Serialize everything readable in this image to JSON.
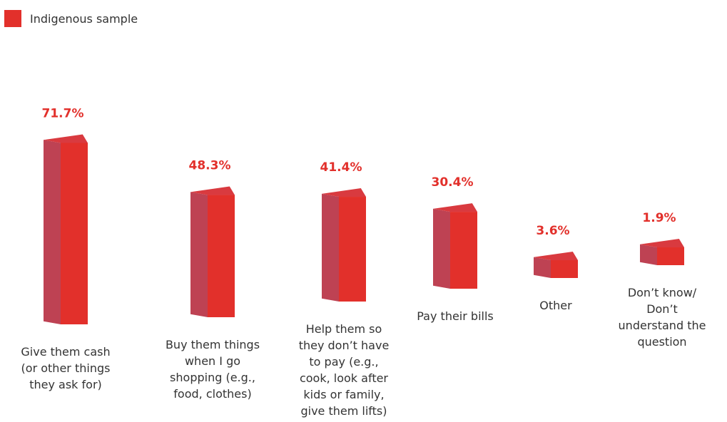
{
  "legend": {
    "label": "Indigenous sample",
    "color": "#e2302b"
  },
  "chart_data": {
    "type": "bar",
    "categories": [
      "Give them cash (or other things they ask for)",
      "Buy them things when I go shopping (e.g., food, clothes)",
      "Help them so they don’t have to pay (e.g., cook, look after kids or family, give them lifts)",
      "Pay their bills",
      "Other",
      "Don’t know/ Don’t understand the question"
    ],
    "category_lines": [
      [
        "Give them cash",
        "(or other things",
        "they ask for)"
      ],
      [
        "Buy them things",
        "when I go",
        "shopping (e.g.,",
        "food, clothes)"
      ],
      [
        "Help them so",
        "they don’t have",
        "to pay (e.g.,",
        "cook, look after",
        "kids or family,",
        "give them lifts)"
      ],
      [
        "Pay their bills"
      ],
      [
        "Other"
      ],
      [
        "Don’t know/",
        "Don’t",
        "understand the",
        "question"
      ]
    ],
    "value_labels": [
      "71.7%",
      "48.3%",
      "41.4%",
      "30.4%",
      "3.6%",
      "1.9%"
    ],
    "series": [
      {
        "name": "Indigenous sample",
        "values": [
          71.7,
          48.3,
          41.4,
          30.4,
          3.6,
          1.9
        ],
        "color": "#e2302b"
      }
    ],
    "side_color": "#be4253",
    "top_color": "#d93a3f",
    "ylim": [
      0,
      100
    ],
    "legend_position": "top-left",
    "grid": false
  }
}
